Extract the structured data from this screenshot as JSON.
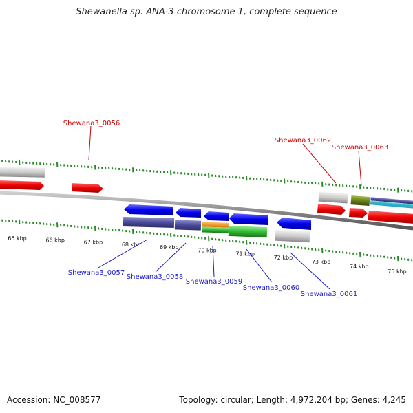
{
  "title": "Shewanella sp. ANA-3 chromosome 1, complete sequence",
  "accession": "Accession: NC_008577",
  "summary": "Topology: circular; Length: 4,972,204 bp; Genes: 4,245",
  "ticks": [
    "65 kbp",
    "66 kbp",
    "67 kbp",
    "68 kbp",
    "69 kbp",
    "70 kbp",
    "71 kbp",
    "72 kbp",
    "73 kbp",
    "74 kbp",
    "75 kbp"
  ],
  "colors": {
    "forward_cds": "#ee0000",
    "reverse_cds": "#0000ee",
    "forward_label": "#cc0000",
    "reverse_label": "#1a1acc",
    "tick": "#2a8a2a",
    "backbone": "#888888"
  },
  "forward_labels": [
    "Shewana3_0056",
    "Shewana3_0062",
    "Shewana3_0063"
  ],
  "reverse_labels": [
    "Shewana3_0057",
    "Shewana3_0058",
    "Shewana3_0059",
    "Shewana3_0060",
    "Shewana3_0061"
  ]
}
